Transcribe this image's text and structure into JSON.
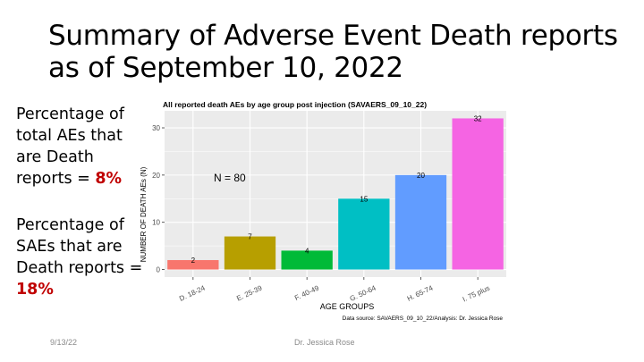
{
  "slide": {
    "title": "Summary of Adverse Event Death reports as of September 10, 2022",
    "stat1": {
      "text": "Percentage of total AEs that are Death reports = ",
      "value": "8%"
    },
    "stat2": {
      "text": "Percentage of SAEs that are Death reports = ",
      "value": "18%"
    },
    "footer_date": "9/13/22",
    "footer_author": "Dr. Jessica Rose"
  },
  "chart_data": {
    "type": "bar",
    "title": "All reported death AEs by age group post injection (SAVAERS_09_10_22)",
    "xlabel": "AGE GROUPS",
    "ylabel": "NUMBER OF DEATH AEs (N)",
    "categories": [
      "D. 18-24",
      "E. 25-39",
      "F. 40-49",
      "G. 50-64",
      "H. 65-74",
      "I. 75 plus"
    ],
    "values": [
      2,
      7,
      4,
      15,
      20,
      32
    ],
    "colors": [
      "#F8766D",
      "#B79F00",
      "#00BA38",
      "#00BFC4",
      "#619CFF",
      "#F564E3"
    ],
    "yticks": [
      0,
      10,
      20,
      30
    ],
    "ylim": [
      -1.6,
      33.6
    ],
    "annotation": "N = 80",
    "caption": "Data source: SAVAERS_09_10_22/Analysis: Dr. Jessica Rose",
    "grid": true,
    "panel_color": "#EBEBEB"
  }
}
